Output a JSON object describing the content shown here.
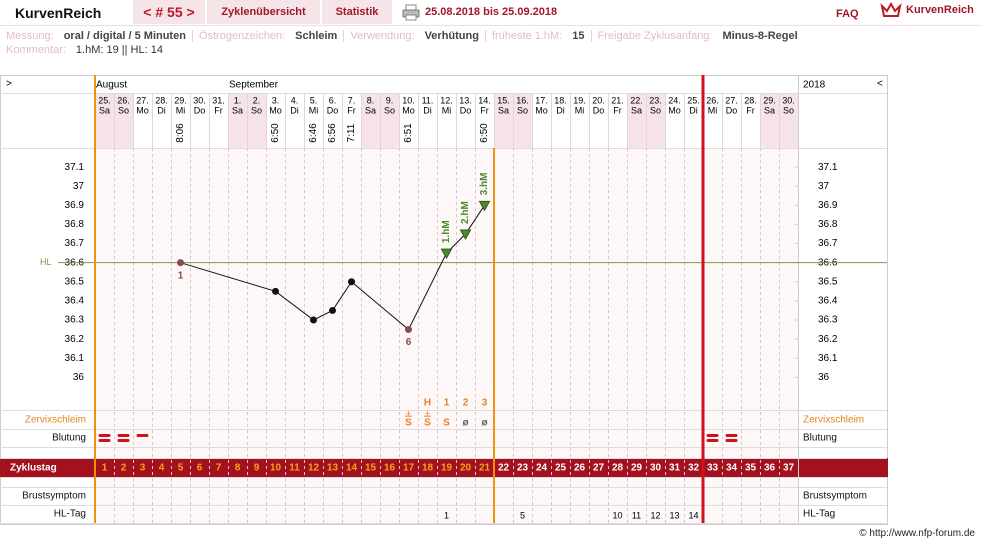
{
  "header": {
    "logo": "KurvenReich",
    "cycle_nav": "< # 55 >",
    "tabs": [
      "Zyklenübersicht",
      "Statistik"
    ],
    "range": "25.08.2018 bis 25.09.2018",
    "faq": "FAQ",
    "brand": "KurvenReich"
  },
  "info": {
    "items": [
      {
        "label": "Messung:",
        "value": "oral / digital / 5 Minuten"
      },
      {
        "label": "Östrogenzeichen:",
        "value": "Schleim"
      },
      {
        "label": "Verwendung:",
        "value": "Verhütung"
      },
      {
        "label": "früheste 1.hM:",
        "value": "15"
      },
      {
        "label": "Freigabe Zyklusanfang:",
        "value": "Minus-8-Regel"
      }
    ],
    "comment_label": "Kommentar:",
    "comment": "1.hM: 19 || HL: 14"
  },
  "chart_data": {
    "type": "line",
    "nav_left": ">",
    "nav_right": "<",
    "year": "2018",
    "months": [
      {
        "label": "August",
        "day": 1
      },
      {
        "label": "September",
        "day": 8
      }
    ],
    "dates": [
      "25.",
      "26.",
      "27.",
      "28.",
      "29.",
      "30.",
      "31.",
      "1.",
      "2.",
      "3.",
      "4.",
      "5.",
      "6.",
      "7.",
      "8.",
      "9.",
      "10.",
      "11.",
      "12.",
      "13.",
      "14.",
      "15.",
      "16.",
      "17.",
      "18.",
      "19.",
      "20.",
      "21.",
      "22.",
      "23.",
      "24.",
      "25.",
      "26.",
      "27.",
      "28.",
      "29.",
      "30."
    ],
    "weekdays": [
      "Sa",
      "So",
      "Mo",
      "Di",
      "Mi",
      "Do",
      "Fr",
      "Sa",
      "So",
      "Mo",
      "Di",
      "Mi",
      "Do",
      "Fr",
      "Sa",
      "So",
      "Mo",
      "Di",
      "Mi",
      "Do",
      "Fr",
      "Sa",
      "So",
      "Mo",
      "Di",
      "Mi",
      "Do",
      "Fr",
      "Sa",
      "So",
      "Mo",
      "Di",
      "Mi",
      "Do",
      "Fr",
      "Sa",
      "So"
    ],
    "shaded_days": [
      1,
      2,
      8,
      9,
      15,
      16,
      22,
      23,
      29,
      30,
      36,
      37
    ],
    "times": [
      null,
      null,
      null,
      null,
      "8:06",
      null,
      null,
      null,
      null,
      "6:50",
      null,
      "6:46",
      "6:56",
      "7:11",
      null,
      null,
      "6:51",
      null,
      null,
      null,
      "6:50",
      null,
      null,
      null,
      null,
      null,
      null,
      null,
      null,
      null,
      null,
      null,
      null,
      null,
      null,
      null,
      null
    ],
    "x": [
      5,
      10,
      12,
      13,
      14,
      17,
      19,
      20,
      21
    ],
    "values": [
      36.6,
      36.45,
      36.3,
      36.35,
      36.5,
      36.25,
      36.65,
      36.75,
      36.9
    ],
    "point_colors": [
      "#8a4a55",
      "#111111",
      "#111111",
      "#111111",
      "#111111",
      "#8a4a55",
      "#4e8a2c",
      "#4e8a2c",
      "#4e8a2c"
    ],
    "point_labels": [
      "1",
      null,
      null,
      null,
      null,
      "6",
      null,
      null,
      null
    ],
    "hm_labels": [
      null,
      null,
      null,
      null,
      null,
      null,
      "1.hM",
      "2.hM",
      "3.hM"
    ],
    "color": "#111111",
    "ylim": [
      35.85,
      37.2
    ],
    "yticks": [
      37.1,
      37,
      36.9,
      36.8,
      36.7,
      36.6,
      36.5,
      36.4,
      36.3,
      36.2,
      36.1,
      36
    ],
    "hl": {
      "label": "HL",
      "value": 36.6,
      "color": "#7a9a4a"
    },
    "eval_end_day": 21,
    "next_cycle_day": 33,
    "zervix": {
      "label": "Zervixschleim",
      "top": [
        null,
        null,
        null,
        null,
        null,
        null,
        null,
        null,
        null,
        null,
        null,
        null,
        null,
        null,
        null,
        null,
        null,
        "H",
        "1",
        "2",
        "3",
        null,
        null,
        null,
        null,
        null,
        null,
        null,
        null,
        null,
        null,
        null,
        null,
        null,
        null,
        null,
        null
      ],
      "plus": [
        null,
        null,
        null,
        null,
        null,
        null,
        null,
        null,
        null,
        null,
        null,
        null,
        null,
        null,
        null,
        null,
        "+",
        "+",
        null,
        null,
        null,
        null,
        null,
        null,
        null,
        null,
        null,
        null,
        null,
        null,
        null,
        null,
        null,
        null,
        null,
        null,
        null
      ],
      "values": [
        null,
        null,
        null,
        null,
        null,
        null,
        null,
        null,
        null,
        null,
        null,
        null,
        null,
        null,
        null,
        null,
        "S",
        "S",
        "S",
        "ø",
        "ø",
        null,
        null,
        null,
        null,
        null,
        null,
        null,
        null,
        null,
        null,
        null,
        null,
        null,
        null,
        null,
        null
      ],
      "colors": [
        null,
        null,
        null,
        null,
        null,
        null,
        null,
        null,
        null,
        null,
        null,
        null,
        null,
        null,
        null,
        null,
        "#e8821e",
        "#e8821e",
        "#e8821e",
        "#666666",
        "#666666",
        null,
        null,
        null,
        null,
        null,
        null,
        null,
        null,
        null,
        null,
        null,
        null,
        null,
        null,
        null,
        null
      ]
    },
    "bleeding": {
      "label": "Blutung",
      "values": [
        2,
        2,
        1,
        null,
        null,
        null,
        null,
        null,
        null,
        null,
        null,
        null,
        null,
        null,
        null,
        null,
        null,
        null,
        null,
        null,
        null,
        null,
        null,
        null,
        null,
        null,
        null,
        null,
        null,
        null,
        null,
        null,
        2,
        2,
        null,
        null,
        null
      ]
    },
    "cycle": {
      "label": "Zyklustag",
      "days": [
        1,
        2,
        3,
        4,
        5,
        6,
        7,
        8,
        9,
        10,
        11,
        12,
        13,
        14,
        15,
        16,
        17,
        18,
        19,
        20,
        21,
        22,
        23,
        24,
        25,
        26,
        27,
        28,
        29,
        30,
        31,
        32,
        33,
        34,
        35,
        36,
        37
      ]
    },
    "breast": {
      "label": "Brustsymptom"
    },
    "hl_days": {
      "label": "HL-Tag",
      "values": [
        null,
        null,
        null,
        null,
        null,
        null,
        null,
        null,
        null,
        null,
        null,
        null,
        null,
        null,
        null,
        null,
        null,
        null,
        1,
        null,
        null,
        null,
        5,
        null,
        null,
        null,
        null,
        10,
        11,
        12,
        13,
        14,
        null,
        null,
        null,
        null,
        null
      ]
    }
  },
  "footer": "© http://www.nfp-forum.de"
}
